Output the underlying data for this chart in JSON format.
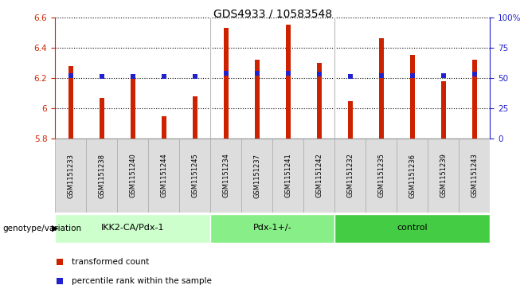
{
  "title": "GDS4933 / 10583548",
  "samples": [
    "GSM1151233",
    "GSM1151238",
    "GSM1151240",
    "GSM1151244",
    "GSM1151245",
    "GSM1151234",
    "GSM1151237",
    "GSM1151241",
    "GSM1151242",
    "GSM1151232",
    "GSM1151235",
    "GSM1151236",
    "GSM1151239",
    "GSM1151243"
  ],
  "transformed_count": [
    6.28,
    6.07,
    6.22,
    5.95,
    6.08,
    6.53,
    6.32,
    6.55,
    6.3,
    6.05,
    6.46,
    6.35,
    6.18,
    6.32
  ],
  "percentile_rank": [
    52,
    51,
    51,
    51,
    51,
    54,
    54,
    54,
    53,
    51,
    52,
    52,
    52,
    53
  ],
  "groups": [
    {
      "label": "IKK2-CA/Pdx-1",
      "start": 0,
      "end": 5,
      "color": "#ccffcc"
    },
    {
      "label": "Pdx-1+/-",
      "start": 5,
      "end": 9,
      "color": "#88ee88"
    },
    {
      "label": "control",
      "start": 9,
      "end": 14,
      "color": "#44cc44"
    }
  ],
  "ymin": 5.8,
  "ymax": 6.6,
  "y2min": 0,
  "y2max": 100,
  "bar_color": "#cc2200",
  "dot_color": "#2222cc",
  "label_color_red": "#cc2200",
  "label_color_blue": "#2222cc",
  "genotype_label": "genotype/variation",
  "legend_transformed": "transformed count",
  "legend_percentile": "percentile rank within the sample",
  "bar_bottom": 5.8,
  "bar_width": 0.15,
  "cell_color": "#dddddd",
  "cell_edgecolor": "#aaaaaa"
}
